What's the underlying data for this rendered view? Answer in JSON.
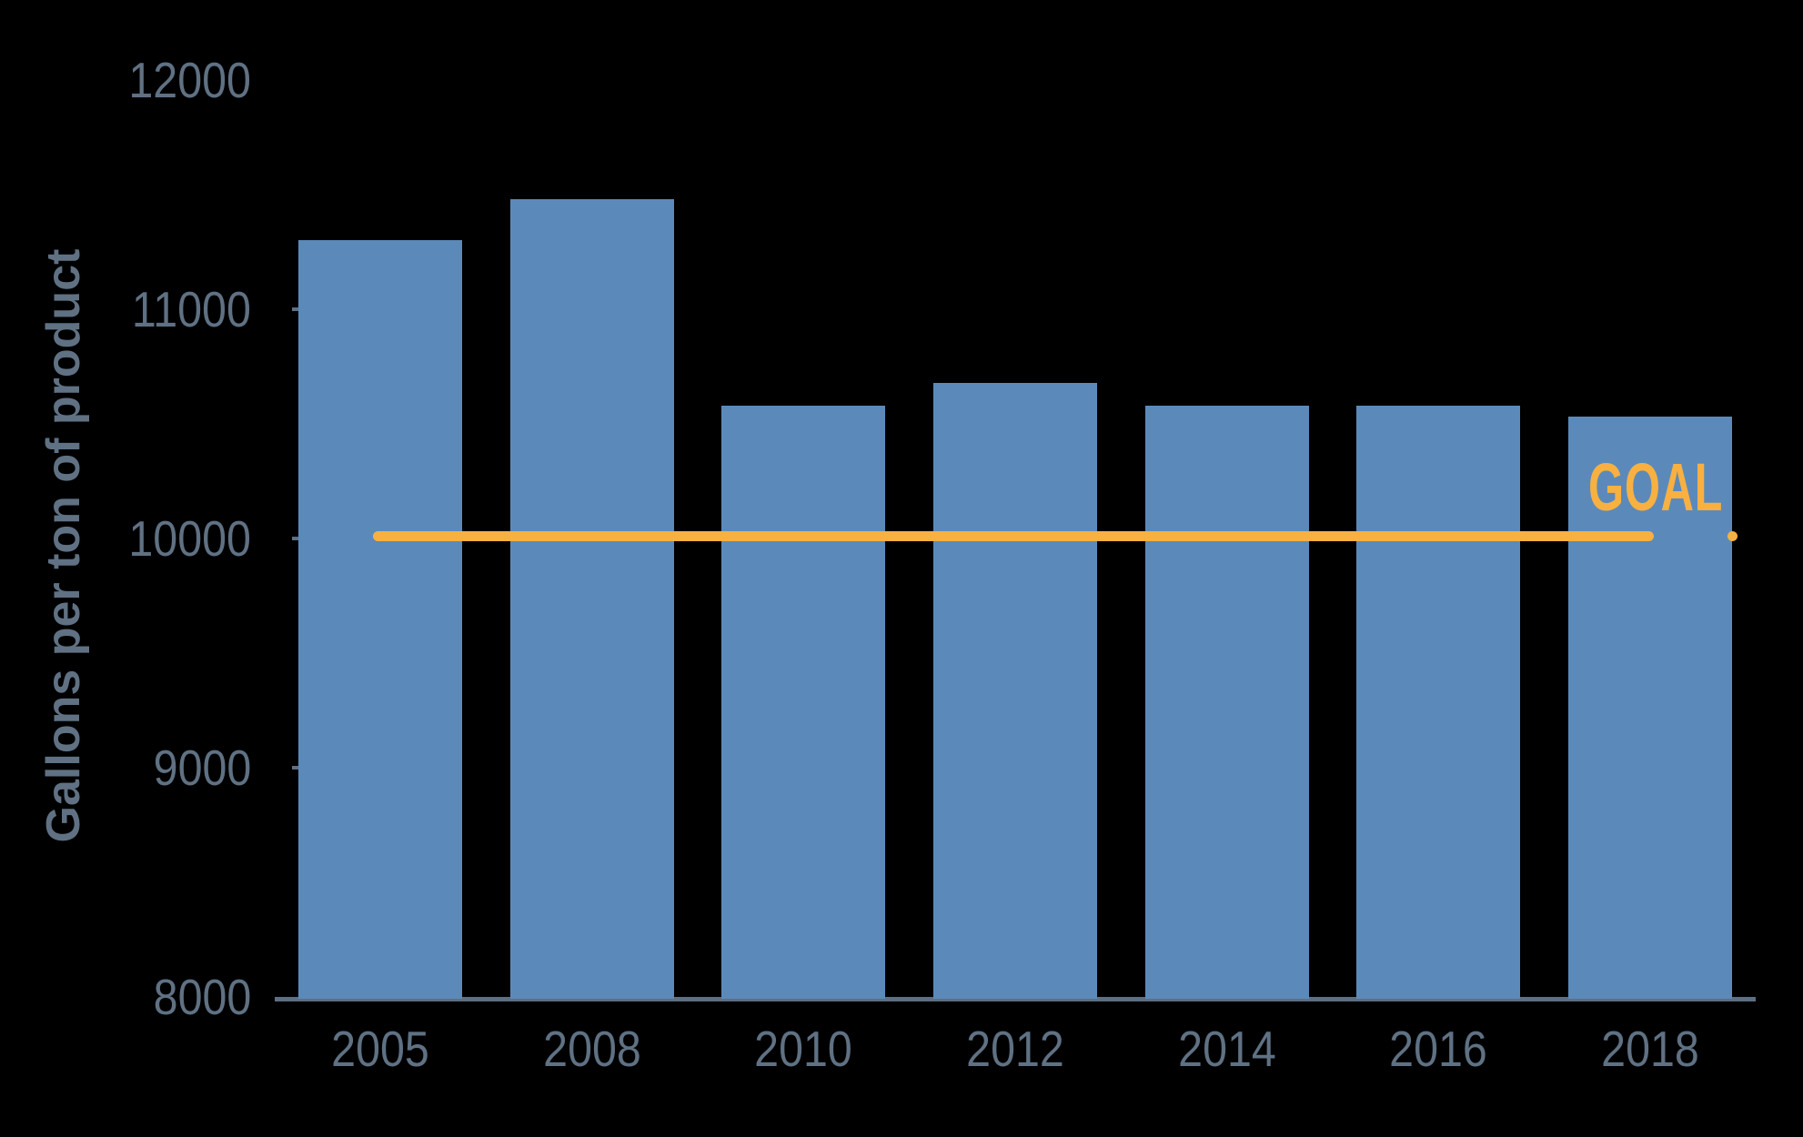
{
  "chart_data": {
    "type": "bar",
    "title": "",
    "ylabel": "Gallons per ton of product",
    "xlabel": "",
    "categories": [
      "2005",
      "2008",
      "2010",
      "2012",
      "2014",
      "2016",
      "2018"
    ],
    "values": [
      11300,
      11480,
      10580,
      10680,
      10580,
      10580,
      10530
    ],
    "ylim": [
      8000,
      12000
    ],
    "yticks": [
      8000,
      9000,
      10000,
      11000,
      12000
    ],
    "grid": false,
    "legend_position": "none",
    "goal_line": {
      "label": "GOAL",
      "value": 10000
    }
  },
  "colors": {
    "background": "#000000",
    "bar": "#5B8ABA",
    "goal": "#F8B041",
    "axis_text": "#5F7183",
    "axis_line": "#5E6F82"
  }
}
